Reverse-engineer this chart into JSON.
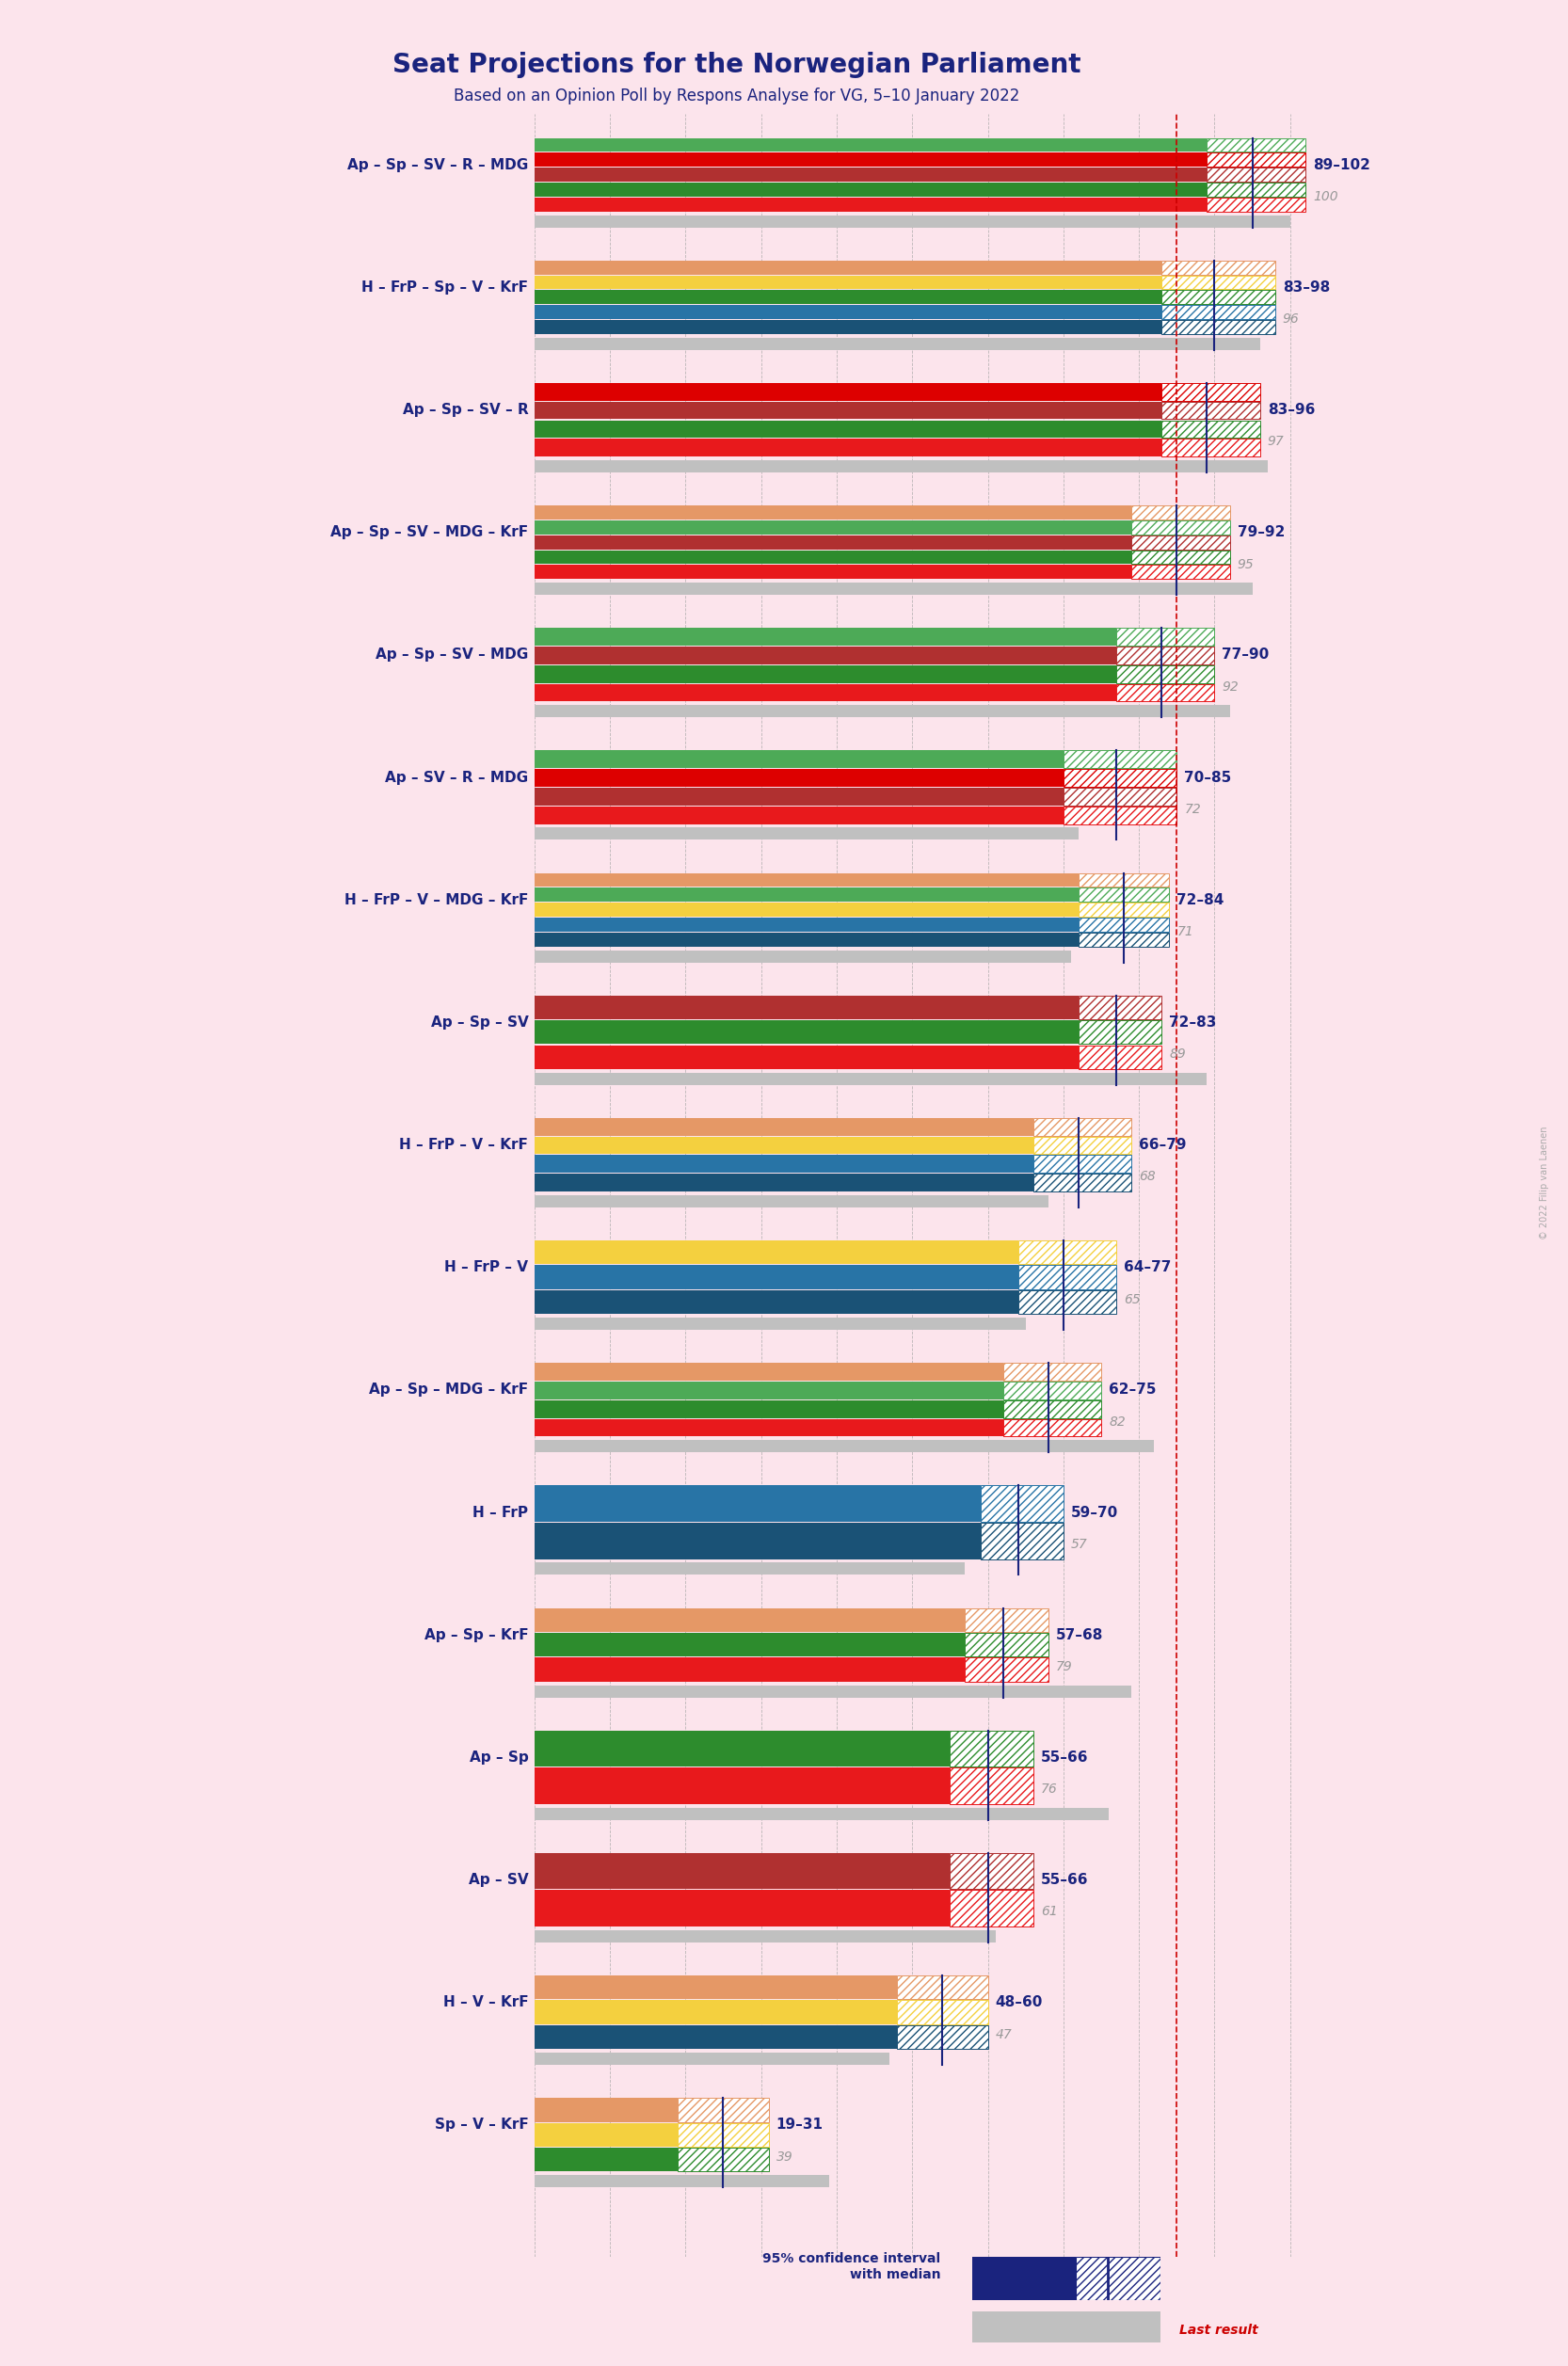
{
  "title": "Seat Projections for the Norwegian Parliament",
  "subtitle": "Based on an Opinion Poll by Respons Analyse for VG, 5–10 January 2022",
  "background_color": "#fce4ec",
  "coalitions": [
    {
      "name": "Ap – Sp – SV – R – MDG",
      "ci_low": 89,
      "ci_high": 102,
      "median": 95,
      "last": 100,
      "parties": [
        "Ap",
        "Sp",
        "SV",
        "R",
        "MDG"
      ],
      "underline": false
    },
    {
      "name": "H – FrP – Sp – V – KrF",
      "ci_low": 83,
      "ci_high": 98,
      "median": 90,
      "last": 96,
      "parties": [
        "H",
        "FrP",
        "Sp",
        "V",
        "KrF"
      ],
      "underline": false
    },
    {
      "name": "Ap – Sp – SV – R",
      "ci_low": 83,
      "ci_high": 96,
      "median": 89,
      "last": 97,
      "parties": [
        "Ap",
        "Sp",
        "SV",
        "R"
      ],
      "underline": false
    },
    {
      "name": "Ap – Sp – SV – MDG – KrF",
      "ci_low": 79,
      "ci_high": 92,
      "median": 85,
      "last": 95,
      "parties": [
        "Ap",
        "Sp",
        "SV",
        "MDG",
        "KrF"
      ],
      "underline": false
    },
    {
      "name": "Ap – Sp – SV – MDG",
      "ci_low": 77,
      "ci_high": 90,
      "median": 83,
      "last": 92,
      "parties": [
        "Ap",
        "Sp",
        "SV",
        "MDG"
      ],
      "underline": false
    },
    {
      "name": "Ap – SV – R – MDG",
      "ci_low": 70,
      "ci_high": 85,
      "median": 77,
      "last": 72,
      "parties": [
        "Ap",
        "SV",
        "R",
        "MDG"
      ],
      "underline": false
    },
    {
      "name": "H – FrP – V – MDG – KrF",
      "ci_low": 72,
      "ci_high": 84,
      "median": 78,
      "last": 71,
      "parties": [
        "H",
        "FrP",
        "V",
        "MDG",
        "KrF"
      ],
      "underline": false
    },
    {
      "name": "Ap – Sp – SV",
      "ci_low": 72,
      "ci_high": 83,
      "median": 77,
      "last": 89,
      "parties": [
        "Ap",
        "Sp",
        "SV"
      ],
      "underline": false
    },
    {
      "name": "H – FrP – V – KrF",
      "ci_low": 66,
      "ci_high": 79,
      "median": 72,
      "last": 68,
      "parties": [
        "H",
        "FrP",
        "V",
        "KrF"
      ],
      "underline": false
    },
    {
      "name": "H – FrP – V",
      "ci_low": 64,
      "ci_high": 77,
      "median": 70,
      "last": 65,
      "parties": [
        "H",
        "FrP",
        "V"
      ],
      "underline": false
    },
    {
      "name": "Ap – Sp – MDG – KrF",
      "ci_low": 62,
      "ci_high": 75,
      "median": 68,
      "last": 82,
      "parties": [
        "Ap",
        "Sp",
        "MDG",
        "KrF"
      ],
      "underline": false
    },
    {
      "name": "H – FrP",
      "ci_low": 59,
      "ci_high": 70,
      "median": 64,
      "last": 57,
      "parties": [
        "H",
        "FrP"
      ],
      "underline": false
    },
    {
      "name": "Ap – Sp – KrF",
      "ci_low": 57,
      "ci_high": 68,
      "median": 62,
      "last": 79,
      "parties": [
        "Ap",
        "Sp",
        "KrF"
      ],
      "underline": false
    },
    {
      "name": "Ap – Sp",
      "ci_low": 55,
      "ci_high": 66,
      "median": 60,
      "last": 76,
      "parties": [
        "Ap",
        "Sp"
      ],
      "underline": false
    },
    {
      "name": "Ap – SV",
      "ci_low": 55,
      "ci_high": 66,
      "median": 60,
      "last": 61,
      "parties": [
        "Ap",
        "SV"
      ],
      "underline": true
    },
    {
      "name": "H – V – KrF",
      "ci_low": 48,
      "ci_high": 60,
      "median": 54,
      "last": 47,
      "parties": [
        "H",
        "V",
        "KrF"
      ],
      "underline": false
    },
    {
      "name": "Sp – V – KrF",
      "ci_low": 19,
      "ci_high": 31,
      "median": 25,
      "last": 39,
      "parties": [
        "Sp",
        "V",
        "KrF"
      ],
      "underline": false
    }
  ],
  "party_colors": {
    "Ap": "#e8191c",
    "Sp": "#2d8c2d",
    "SV": "#b03030",
    "R": "#dd0000",
    "MDG": "#4daa57",
    "H": "#1a5276",
    "FrP": "#2874a6",
    "V": "#f4d03f",
    "KrF": "#e59866"
  },
  "majority_line": 85,
  "x_max": 110,
  "label_color_name": "#1a237e",
  "label_color_last": "#999999",
  "watermark": "© 2022 Filip van Laenen",
  "legend_ci_text": "95% confidence interval\nwith median",
  "legend_last_text": "Last result"
}
